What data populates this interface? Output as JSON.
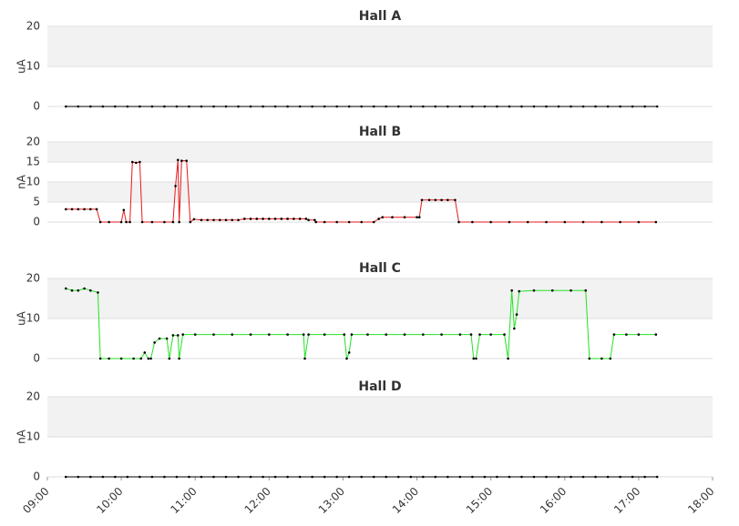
{
  "chart_data": [
    {
      "type": "line",
      "title": "Hall A",
      "ylabel": "uA",
      "ylim": [
        0,
        20
      ],
      "yticks": [
        0,
        10,
        20
      ],
      "xlim": [
        "09:00",
        "18:00"
      ],
      "x": [
        "09:15",
        "09:25",
        "09:35",
        "09:45",
        "09:55",
        "10:05",
        "10:15",
        "10:25",
        "10:35",
        "10:45",
        "10:55",
        "11:05",
        "11:15",
        "11:25",
        "11:35",
        "11:45",
        "11:55",
        "12:05",
        "12:15",
        "12:25",
        "12:35",
        "12:45",
        "12:55",
        "13:05",
        "13:15",
        "13:25",
        "13:35",
        "13:45",
        "13:55",
        "14:05",
        "14:15",
        "14:25",
        "14:35",
        "14:45",
        "14:55",
        "15:05",
        "15:15",
        "15:25",
        "15:35",
        "15:45",
        "15:55",
        "16:05",
        "16:15",
        "16:25",
        "16:35",
        "16:45",
        "16:55",
        "17:05",
        "17:15"
      ],
      "series": [
        {
          "color": "#000000",
          "values": [
            0,
            0,
            0,
            0,
            0,
            0,
            0,
            0,
            0,
            0,
            0,
            0,
            0,
            0,
            0,
            0,
            0,
            0,
            0,
            0,
            0,
            0,
            0,
            0,
            0,
            0,
            0,
            0,
            0,
            0,
            0,
            0,
            0,
            0,
            0,
            0,
            0,
            0,
            0,
            0,
            0,
            0,
            0,
            0,
            0,
            0,
            0,
            0,
            0
          ]
        }
      ]
    },
    {
      "type": "line",
      "title": "Hall B",
      "ylabel": "nA",
      "ylim": [
        0,
        20
      ],
      "yticks": [
        0,
        5,
        10,
        15,
        20
      ],
      "xlim": [
        "09:00",
        "18:00"
      ],
      "x": [
        "09:15",
        "09:20",
        "09:25",
        "09:30",
        "09:35",
        "09:40",
        "09:43",
        "09:50",
        "10:00",
        "10:02",
        "10:04",
        "10:07",
        "10:09",
        "10:12",
        "10:15",
        "10:17",
        "10:25",
        "10:35",
        "10:42",
        "10:44",
        "10:46",
        "10:47",
        "10:49",
        "10:53",
        "10:56",
        "10:59",
        "11:05",
        "11:10",
        "11:15",
        "11:20",
        "11:25",
        "11:30",
        "11:35",
        "11:40",
        "11:45",
        "11:50",
        "11:55",
        "12:00",
        "12:05",
        "12:10",
        "12:15",
        "12:20",
        "12:25",
        "12:30",
        "12:32",
        "12:37",
        "12:38",
        "12:45",
        "12:55",
        "13:05",
        "13:15",
        "13:25",
        "13:29",
        "13:32",
        "13:40",
        "13:50",
        "14:00",
        "14:02",
        "14:04",
        "14:10",
        "14:15",
        "14:20",
        "14:25",
        "14:31",
        "14:34",
        "14:45",
        "15:00",
        "15:15",
        "15:30",
        "15:45",
        "16:00",
        "16:15",
        "16:30",
        "16:45",
        "17:00",
        "17:14"
      ],
      "series": [
        {
          "color": "#e8191b",
          "values": [
            3.2,
            3.2,
            3.2,
            3.2,
            3.2,
            3.2,
            0,
            0,
            0,
            3,
            0,
            0,
            15,
            14.8,
            15,
            0,
            0,
            0,
            0,
            9,
            15.5,
            0,
            15.3,
            15.3,
            0,
            0.7,
            0.5,
            0.5,
            0.5,
            0.5,
            0.5,
            0.5,
            0.5,
            0.8,
            0.8,
            0.8,
            0.8,
            0.8,
            0.8,
            0.8,
            0.8,
            0.8,
            0.8,
            0.8,
            0.5,
            0.5,
            0,
            0,
            0,
            0,
            0,
            0,
            0.8,
            1.2,
            1.2,
            1.2,
            1.2,
            1.2,
            5.5,
            5.5,
            5.5,
            5.5,
            5.5,
            5.5,
            0,
            0,
            0,
            0,
            0,
            0,
            0,
            0,
            0,
            0,
            0,
            0
          ]
        }
      ]
    },
    {
      "type": "line",
      "title": "Hall C",
      "ylabel": "uA",
      "ylim": [
        0,
        20
      ],
      "yticks": [
        0,
        10,
        20
      ],
      "xlim": [
        "09:00",
        "18:00"
      ],
      "x": [
        "09:15",
        "09:20",
        "09:25",
        "09:30",
        "09:35",
        "09:41",
        "09:43",
        "09:50",
        "10:00",
        "10:10",
        "10:16",
        "10:19",
        "10:22",
        "10:24",
        "10:27",
        "10:31",
        "10:37",
        "10:39",
        "10:42",
        "10:46",
        "10:47",
        "10:50",
        "11:00",
        "11:15",
        "11:30",
        "11:45",
        "12:00",
        "12:15",
        "12:28",
        "12:29",
        "12:32",
        "12:45",
        "13:01",
        "13:03",
        "13:05",
        "13:07",
        "13:20",
        "13:35",
        "13:50",
        "14:05",
        "14:20",
        "14:35",
        "14:44",
        "14:46",
        "14:48",
        "14:51",
        "15:00",
        "15:11",
        "15:14",
        "15:17",
        "15:19",
        "15:21",
        "15:23",
        "15:35",
        "15:50",
        "16:05",
        "16:17",
        "16:20",
        "16:30",
        "16:37",
        "16:40",
        "16:50",
        "17:00",
        "17:14"
      ],
      "series": [
        {
          "color": "#22e322",
          "values": [
            17.5,
            17,
            17,
            17.5,
            17,
            16.5,
            0,
            0,
            0,
            0,
            0,
            1.5,
            0,
            0,
            4,
            5,
            5,
            0,
            5.8,
            5.8,
            0,
            6,
            6,
            6,
            6,
            6,
            6,
            6,
            6,
            0,
            6,
            6,
            6,
            0,
            1.5,
            6,
            6,
            6,
            6,
            6,
            6,
            6,
            6,
            0,
            0,
            6,
            6,
            6,
            0,
            17,
            7.5,
            11,
            16.8,
            17,
            17,
            17,
            17,
            0,
            0,
            0,
            6,
            6,
            6,
            6
          ]
        }
      ]
    },
    {
      "type": "line",
      "title": "Hall D",
      "ylabel": "nA",
      "ylim": [
        0,
        20
      ],
      "yticks": [
        0,
        10,
        20
      ],
      "xlim": [
        "09:00",
        "18:00"
      ],
      "xticks": [
        "09:00",
        "10:00",
        "11:00",
        "12:00",
        "13:00",
        "14:00",
        "15:00",
        "16:00",
        "17:00",
        "18:00"
      ],
      "x": [
        "09:15",
        "09:25",
        "09:35",
        "09:45",
        "09:55",
        "10:05",
        "10:15",
        "10:25",
        "10:35",
        "10:45",
        "10:55",
        "11:05",
        "11:15",
        "11:25",
        "11:35",
        "11:45",
        "11:55",
        "12:05",
        "12:15",
        "12:25",
        "12:35",
        "12:45",
        "12:55",
        "13:05",
        "13:15",
        "13:25",
        "13:35",
        "13:45",
        "13:55",
        "14:05",
        "14:15",
        "14:25",
        "14:35",
        "14:45",
        "14:55",
        "15:05",
        "15:15",
        "15:25",
        "15:35",
        "15:45",
        "15:55",
        "16:05",
        "16:15",
        "16:25",
        "16:35",
        "16:45",
        "16:55",
        "17:05",
        "17:15"
      ],
      "series": [
        {
          "color": "#000000",
          "values": [
            0,
            0,
            0,
            0,
            0,
            0,
            0,
            0,
            0,
            0,
            0,
            0,
            0,
            0,
            0,
            0,
            0,
            0,
            0,
            0,
            0,
            0,
            0,
            0,
            0,
            0,
            0,
            0,
            0,
            0,
            0,
            0,
            0,
            0,
            0,
            0,
            0,
            0,
            0,
            0,
            0,
            0,
            0,
            0,
            0,
            0,
            0,
            0,
            0
          ]
        }
      ]
    }
  ]
}
